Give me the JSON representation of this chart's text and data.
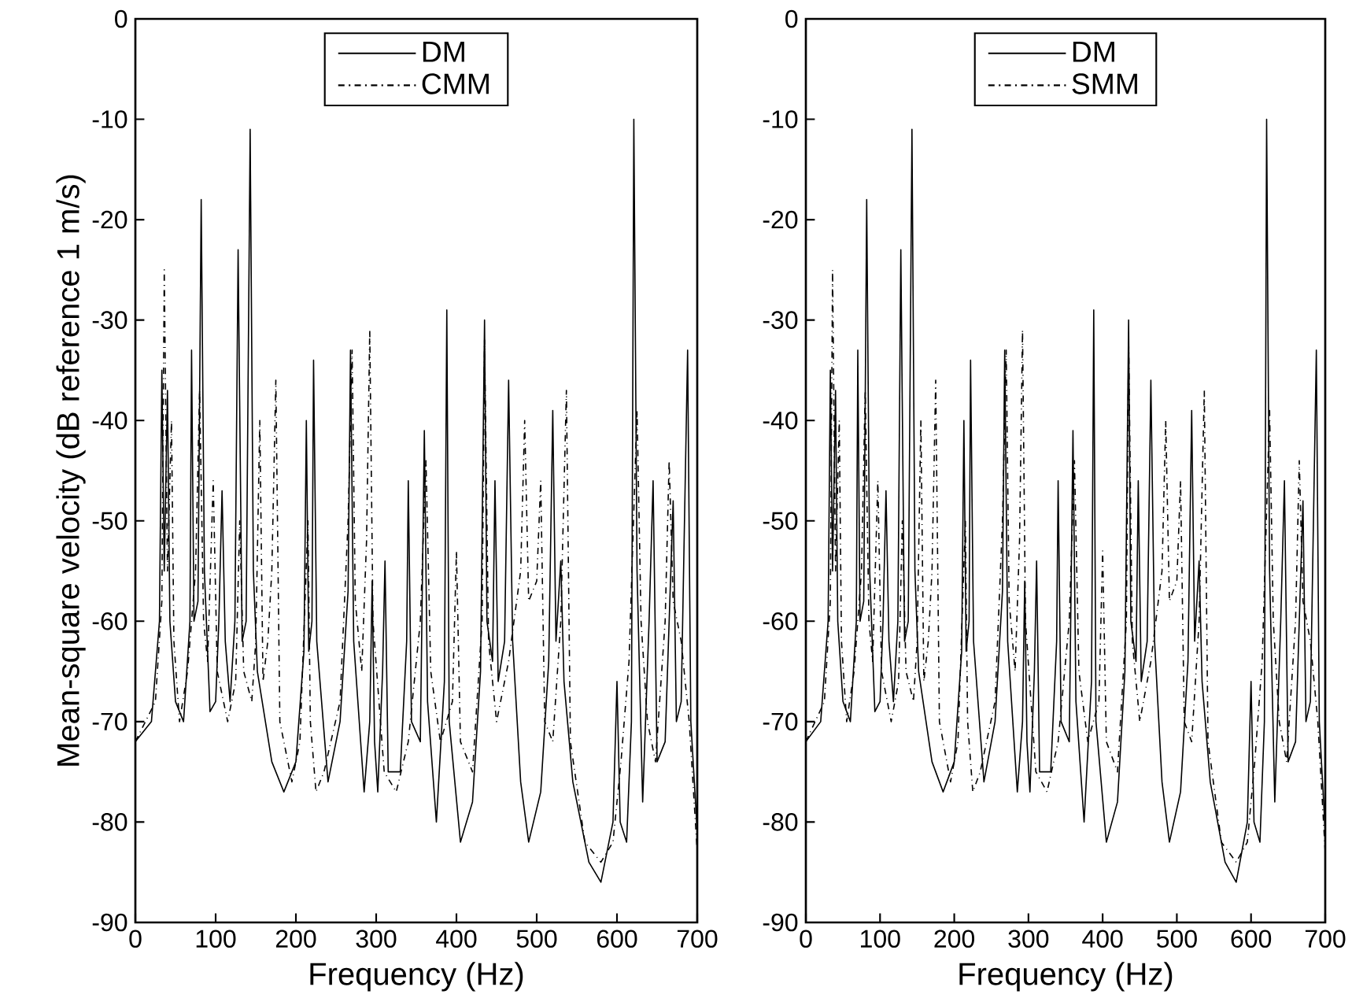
{
  "chart_data": [
    {
      "type": "line",
      "xlabel": "Frequency (Hz)",
      "ylabel": "Mean-square velocity (dB reference 1 m/s)",
      "xlim": [
        0,
        700
      ],
      "ylim": [
        -90,
        0
      ],
      "xticks": [
        0,
        100,
        200,
        300,
        400,
        500,
        600,
        700
      ],
      "yticks": [
        -90,
        -80,
        -70,
        -60,
        -50,
        -40,
        -30,
        -20,
        -10,
        0
      ],
      "legend": "top",
      "grid": false,
      "marker": "none",
      "series": [
        {
          "name": "DM",
          "color": "#000000",
          "line_style": "solid",
          "x": [
            0,
            20,
            30,
            33,
            36,
            40,
            43,
            50,
            60,
            68,
            70,
            73,
            78,
            82,
            86,
            93,
            100,
            104,
            108,
            112,
            118,
            124,
            128,
            133,
            138,
            143,
            147,
            152,
            170,
            185,
            200,
            210,
            213,
            216,
            220,
            222,
            226,
            240,
            255,
            265,
            268,
            272,
            285,
            292,
            295,
            298,
            302,
            308,
            311,
            315,
            330,
            338,
            340,
            344,
            355,
            360,
            364,
            375,
            385,
            388,
            391,
            405,
            420,
            430,
            435,
            438,
            445,
            448,
            452,
            460,
            465,
            470,
            480,
            490,
            505,
            515,
            520,
            524,
            530,
            534,
            545,
            565,
            580,
            595,
            600,
            604,
            612,
            618,
            621,
            625,
            632,
            640,
            645,
            650,
            660,
            670,
            674,
            680,
            688,
            692,
            700
          ],
          "values": [
            -72,
            -70,
            -60,
            -35,
            -55,
            -37,
            -60,
            -68,
            -70,
            -60,
            -33,
            -60,
            -58,
            -18,
            -55,
            -69,
            -68,
            -60,
            -47,
            -62,
            -68,
            -60,
            -23,
            -62,
            -60,
            -11,
            -55,
            -65,
            -74,
            -77,
            -74,
            -63,
            -40,
            -63,
            -60,
            -34,
            -62,
            -76,
            -70,
            -57,
            -33,
            -62,
            -77,
            -70,
            -56,
            -72,
            -77,
            -65,
            -54,
            -75,
            -75,
            -62,
            -46,
            -70,
            -72,
            -41,
            -68,
            -80,
            -66,
            -29,
            -70,
            -82,
            -78,
            -65,
            -30,
            -60,
            -64,
            -46,
            -66,
            -62,
            -36,
            -62,
            -76,
            -82,
            -77,
            -64,
            -39,
            -62,
            -54,
            -66,
            -76,
            -84,
            -86,
            -80,
            -66,
            -80,
            -82,
            -70,
            -10,
            -55,
            -78,
            -60,
            -46,
            -74,
            -72,
            -48,
            -70,
            -68,
            -33,
            -70,
            -81
          ]
        },
        {
          "name": "CMM",
          "color": "#000000",
          "line_style": "dashed",
          "x": [
            0,
            25,
            33,
            36,
            40,
            45,
            48,
            55,
            65,
            75,
            80,
            85,
            90,
            97,
            102,
            115,
            125,
            130,
            135,
            145,
            150,
            155,
            159,
            165,
            170,
            175,
            180,
            195,
            205,
            215,
            218,
            225,
            235,
            255,
            265,
            270,
            274,
            282,
            288,
            292,
            296,
            310,
            325,
            340,
            355,
            362,
            368,
            380,
            395,
            400,
            405,
            420,
            432,
            435,
            440,
            450,
            465,
            480,
            485,
            490,
            500,
            505,
            510,
            520,
            530,
            537,
            542,
            560,
            580,
            595,
            605,
            615,
            625,
            630,
            638,
            648,
            660,
            665,
            670,
            680,
            690,
            700
          ],
          "values": [
            -72,
            -68,
            -58,
            -25,
            -55,
            -40,
            -62,
            -70,
            -65,
            -55,
            -37,
            -60,
            -64,
            -46,
            -65,
            -70,
            -66,
            -50,
            -65,
            -68,
            -62,
            -40,
            -66,
            -62,
            -55,
            -36,
            -70,
            -76,
            -72,
            -50,
            -70,
            -77,
            -75,
            -68,
            -50,
            -33,
            -58,
            -65,
            -52,
            -31,
            -60,
            -75,
            -77,
            -72,
            -60,
            -44,
            -65,
            -72,
            -68,
            -53,
            -72,
            -75,
            -60,
            -32,
            -62,
            -70,
            -64,
            -55,
            -40,
            -58,
            -56,
            -46,
            -70,
            -72,
            -60,
            -37,
            -72,
            -82,
            -84,
            -82,
            -74,
            -64,
            -39,
            -60,
            -70,
            -74,
            -60,
            -44,
            -58,
            -62,
            -70,
            -83
          ]
        }
      ]
    },
    {
      "type": "line",
      "xlabel": "Frequency (Hz)",
      "xlim": [
        0,
        700
      ],
      "ylim": [
        -90,
        0
      ],
      "xticks": [
        0,
        100,
        200,
        300,
        400,
        500,
        600,
        700
      ],
      "yticks": [
        -90,
        -80,
        -70,
        -60,
        -50,
        -40,
        -30,
        -20,
        -10,
        0
      ],
      "legend": "top",
      "grid": false,
      "marker": "none",
      "series": [
        {
          "name": "DM",
          "color": "#000000",
          "line_style": "solid",
          "x": [
            0,
            20,
            30,
            33,
            36,
            40,
            43,
            50,
            60,
            68,
            70,
            73,
            78,
            82,
            86,
            93,
            100,
            104,
            108,
            112,
            118,
            124,
            128,
            133,
            138,
            143,
            147,
            152,
            170,
            185,
            200,
            210,
            213,
            216,
            220,
            222,
            226,
            240,
            255,
            265,
            268,
            272,
            285,
            292,
            295,
            298,
            302,
            308,
            311,
            315,
            330,
            338,
            340,
            344,
            355,
            360,
            364,
            375,
            385,
            388,
            391,
            405,
            420,
            430,
            435,
            438,
            445,
            448,
            452,
            460,
            465,
            470,
            480,
            490,
            505,
            515,
            520,
            524,
            530,
            534,
            545,
            565,
            580,
            595,
            600,
            604,
            612,
            618,
            621,
            625,
            632,
            640,
            645,
            650,
            660,
            670,
            674,
            680,
            688,
            692,
            700
          ],
          "values": [
            -72,
            -70,
            -60,
            -35,
            -55,
            -37,
            -60,
            -68,
            -70,
            -60,
            -33,
            -60,
            -58,
            -18,
            -55,
            -69,
            -68,
            -60,
            -47,
            -62,
            -68,
            -60,
            -23,
            -62,
            -60,
            -11,
            -55,
            -65,
            -74,
            -77,
            -74,
            -63,
            -40,
            -63,
            -60,
            -34,
            -62,
            -76,
            -70,
            -57,
            -33,
            -62,
            -77,
            -70,
            -56,
            -72,
            -77,
            -65,
            -54,
            -75,
            -75,
            -62,
            -46,
            -70,
            -72,
            -41,
            -68,
            -80,
            -66,
            -29,
            -70,
            -82,
            -78,
            -65,
            -30,
            -60,
            -64,
            -46,
            -66,
            -62,
            -36,
            -62,
            -76,
            -82,
            -77,
            -64,
            -39,
            -62,
            -54,
            -66,
            -76,
            -84,
            -86,
            -80,
            -66,
            -80,
            -82,
            -70,
            -10,
            -55,
            -78,
            -60,
            -46,
            -74,
            -72,
            -48,
            -70,
            -68,
            -33,
            -70,
            -81
          ]
        },
        {
          "name": "SMM",
          "color": "#000000",
          "line_style": "dashed",
          "x": [
            0,
            25,
            33,
            36,
            40,
            45,
            48,
            55,
            65,
            75,
            80,
            85,
            90,
            97,
            102,
            115,
            125,
            130,
            135,
            145,
            150,
            155,
            159,
            165,
            170,
            175,
            180,
            195,
            205,
            215,
            218,
            225,
            235,
            255,
            265,
            270,
            274,
            282,
            288,
            292,
            296,
            310,
            325,
            340,
            355,
            362,
            368,
            380,
            395,
            400,
            405,
            420,
            432,
            435,
            440,
            450,
            465,
            480,
            485,
            490,
            500,
            505,
            510,
            520,
            530,
            537,
            542,
            560,
            580,
            595,
            605,
            615,
            625,
            630,
            638,
            648,
            660,
            665,
            670,
            680,
            690,
            700
          ],
          "values": [
            -72,
            -68,
            -58,
            -25,
            -55,
            -40,
            -62,
            -70,
            -65,
            -55,
            -37,
            -60,
            -64,
            -46,
            -65,
            -70,
            -66,
            -50,
            -65,
            -68,
            -62,
            -40,
            -66,
            -62,
            -55,
            -36,
            -70,
            -76,
            -72,
            -50,
            -70,
            -77,
            -75,
            -68,
            -50,
            -33,
            -58,
            -65,
            -52,
            -31,
            -60,
            -75,
            -77,
            -72,
            -60,
            -44,
            -65,
            -72,
            -68,
            -53,
            -72,
            -75,
            -60,
            -32,
            -62,
            -70,
            -64,
            -55,
            -40,
            -58,
            -56,
            -46,
            -70,
            -72,
            -60,
            -37,
            -72,
            -82,
            -84,
            -82,
            -74,
            -64,
            -39,
            -60,
            -70,
            -74,
            -60,
            -44,
            -58,
            -62,
            -70,
            -83
          ]
        }
      ]
    }
  ]
}
